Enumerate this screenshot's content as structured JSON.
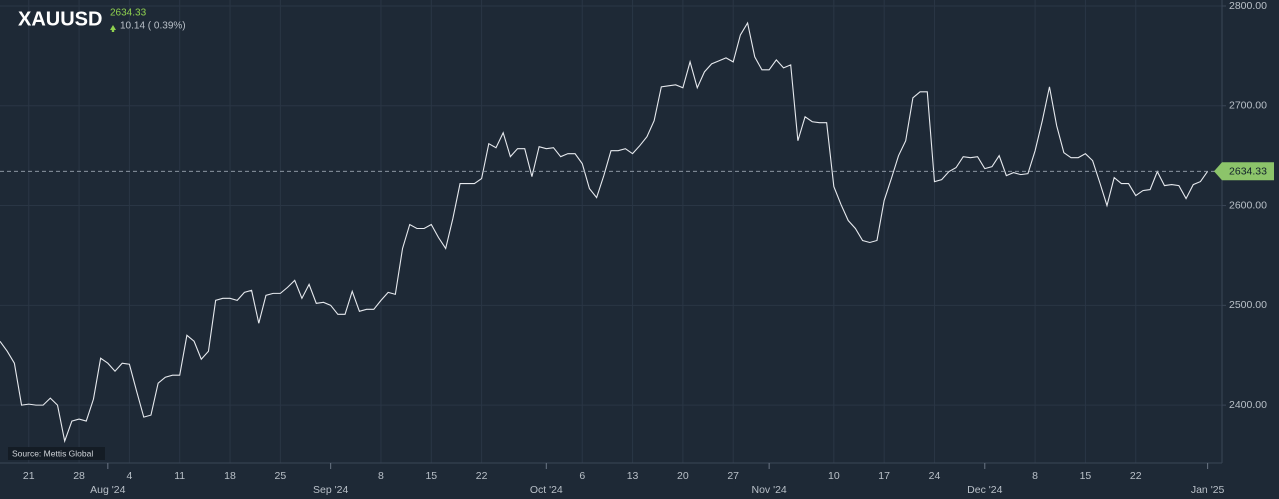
{
  "chart_data": {
    "type": "line",
    "symbol": "XAUUSD",
    "last": 2634.33,
    "change": "10.14 ( 0.39%)",
    "source": "Source: Mettis Global",
    "color": "#e6e9ee",
    "grid": true,
    "x": [
      "2024-07-17",
      "2024-07-18",
      "2024-07-19",
      "2024-07-20",
      "2024-07-21",
      "2024-07-22",
      "2024-07-23",
      "2024-07-24",
      "2024-07-25",
      "2024-07-26",
      "2024-07-27",
      "2024-07-28",
      "2024-07-29",
      "2024-07-30",
      "2024-07-31",
      "2024-08-01",
      "2024-08-02",
      "2024-08-03",
      "2024-08-04",
      "2024-08-05",
      "2024-08-06",
      "2024-08-07",
      "2024-08-08",
      "2024-08-09",
      "2024-08-10",
      "2024-08-11",
      "2024-08-12",
      "2024-08-13",
      "2024-08-14",
      "2024-08-15",
      "2024-08-16",
      "2024-08-17",
      "2024-08-18",
      "2024-08-19",
      "2024-08-20",
      "2024-08-21",
      "2024-08-22",
      "2024-08-23",
      "2024-08-24",
      "2024-08-25",
      "2024-08-26",
      "2024-08-27",
      "2024-08-28",
      "2024-08-29",
      "2024-08-30",
      "2024-08-31",
      "2024-09-01",
      "2024-09-02",
      "2024-09-03",
      "2024-09-04",
      "2024-09-05",
      "2024-09-06",
      "2024-09-07",
      "2024-09-08",
      "2024-09-09",
      "2024-09-10",
      "2024-09-11",
      "2024-09-12",
      "2024-09-13",
      "2024-09-14",
      "2024-09-15",
      "2024-09-16",
      "2024-09-17",
      "2024-09-18",
      "2024-09-19",
      "2024-09-20",
      "2024-09-21",
      "2024-09-22",
      "2024-09-23",
      "2024-09-24",
      "2024-09-25",
      "2024-09-26",
      "2024-09-27",
      "2024-09-28",
      "2024-09-29",
      "2024-09-30",
      "2024-10-01",
      "2024-10-02",
      "2024-10-03",
      "2024-10-04",
      "2024-10-05",
      "2024-10-06",
      "2024-10-07",
      "2024-10-08",
      "2024-10-09",
      "2024-10-10",
      "2024-10-11",
      "2024-10-12",
      "2024-10-13",
      "2024-10-14",
      "2024-10-15",
      "2024-10-16",
      "2024-10-17",
      "2024-10-18",
      "2024-10-19",
      "2024-10-20",
      "2024-10-21",
      "2024-10-22",
      "2024-10-23",
      "2024-10-24",
      "2024-10-25",
      "2024-10-26",
      "2024-10-27",
      "2024-10-28",
      "2024-10-29",
      "2024-10-30",
      "2024-10-31",
      "2024-11-01",
      "2024-11-02",
      "2024-11-03",
      "2024-11-04",
      "2024-11-05",
      "2024-11-06",
      "2024-11-07",
      "2024-11-08",
      "2024-11-09",
      "2024-11-10",
      "2024-11-11",
      "2024-11-12",
      "2024-11-13",
      "2024-11-14",
      "2024-11-15",
      "2024-11-16",
      "2024-11-17",
      "2024-11-18",
      "2024-11-19",
      "2024-11-20",
      "2024-11-21",
      "2024-11-22",
      "2024-11-23",
      "2024-11-24",
      "2024-11-25",
      "2024-11-26",
      "2024-11-27",
      "2024-11-28",
      "2024-11-29",
      "2024-11-30",
      "2024-12-01",
      "2024-12-02",
      "2024-12-03",
      "2024-12-04",
      "2024-12-05",
      "2024-12-06",
      "2024-12-07",
      "2024-12-08",
      "2024-12-09",
      "2024-12-10",
      "2024-12-11",
      "2024-12-12",
      "2024-12-13",
      "2024-12-14",
      "2024-12-15",
      "2024-12-16",
      "2024-12-17",
      "2024-12-18",
      "2024-12-19",
      "2024-12-20",
      "2024-12-21",
      "2024-12-22",
      "2024-12-23",
      "2024-12-24",
      "2024-12-25",
      "2024-12-26",
      "2024-12-27",
      "2024-12-28",
      "2024-12-29",
      "2024-12-30",
      "2024-12-31",
      "2025-01-01"
    ],
    "values": [
      2464,
      2454,
      2442,
      2400,
      2401,
      2400,
      2400,
      2407,
      2400,
      2364,
      2384,
      2386,
      2384,
      2406,
      2447,
      2442,
      2434,
      2442,
      2441,
      2414,
      2388,
      2390,
      2422,
      2428,
      2430,
      2430,
      2470,
      2464,
      2446,
      2454,
      2505,
      2507,
      2507,
      2505,
      2513,
      2515,
      2482,
      2510,
      2512,
      2512,
      2518,
      2525,
      2507,
      2521,
      2502,
      2503,
      2500,
      2491,
      2491,
      2514,
      2494,
      2496,
      2496,
      2505,
      2513,
      2511,
      2557,
      2581,
      2577,
      2577,
      2581,
      2568,
      2557,
      2587,
      2622,
      2622,
      2622,
      2627,
      2662,
      2658,
      2673,
      2649,
      2657,
      2657,
      2629,
      2659,
      2657,
      2658,
      2649,
      2652,
      2652,
      2642,
      2617,
      2608,
      2630,
      2655,
      2655,
      2657,
      2652,
      2660,
      2669,
      2685,
      2719,
      2720,
      2721,
      2718,
      2744,
      2718,
      2734,
      2742,
      2745,
      2748,
      2744,
      2771,
      2783,
      2749,
      2736,
      2736,
      2746,
      2738,
      2741,
      2665,
      2689,
      2684,
      2683,
      2683,
      2619,
      2601,
      2585,
      2577,
      2565,
      2563,
      2565,
      2605,
      2627,
      2650,
      2665,
      2708,
      2714,
      2714,
      2624,
      2626,
      2634,
      2638,
      2649,
      2648,
      2649,
      2637,
      2639,
      2650,
      2630,
      2633,
      2631,
      2632,
      2655,
      2685,
      2719,
      2680,
      2653,
      2648,
      2648,
      2652,
      2645,
      2623,
      2600,
      2628,
      2622,
      2622,
      2610,
      2615,
      2616,
      2634,
      2620,
      2621,
      2620,
      2607,
      2621,
      2624,
      2634.33
    ],
    "xlim": [
      "2024-07-17",
      "2025-01-03"
    ],
    "xticks": [
      {
        "value": "2024-07-21",
        "label": "21"
      },
      {
        "value": "2024-07-28",
        "label": "28"
      },
      {
        "value": "2024-08-04",
        "label": "4"
      },
      {
        "value": "2024-08-11",
        "label": "11"
      },
      {
        "value": "2024-08-18",
        "label": "18"
      },
      {
        "value": "2024-08-25",
        "label": "25"
      },
      {
        "value": "2024-09-08",
        "label": "8"
      },
      {
        "value": "2024-09-15",
        "label": "15"
      },
      {
        "value": "2024-09-22",
        "label": "22"
      },
      {
        "value": "2024-10-06",
        "label": "6"
      },
      {
        "value": "2024-10-13",
        "label": "13"
      },
      {
        "value": "2024-10-20",
        "label": "20"
      },
      {
        "value": "2024-10-27",
        "label": "27"
      },
      {
        "value": "2024-11-10",
        "label": "10"
      },
      {
        "value": "2024-11-17",
        "label": "17"
      },
      {
        "value": "2024-11-24",
        "label": "24"
      },
      {
        "value": "2024-12-08",
        "label": "8"
      },
      {
        "value": "2024-12-15",
        "label": "15"
      },
      {
        "value": "2024-12-22",
        "label": "22"
      }
    ],
    "month_ticks": [
      {
        "value": "2024-08-01",
        "label": "Aug '24"
      },
      {
        "value": "2024-09-01",
        "label": "Sep '24"
      },
      {
        "value": "2024-10-01",
        "label": "Oct '24"
      },
      {
        "value": "2024-11-01",
        "label": "Nov '24"
      },
      {
        "value": "2024-12-01",
        "label": "Dec '24"
      },
      {
        "value": "2025-01-01",
        "label": "Jan '25"
      }
    ],
    "ylim": [
      2342,
      2806
    ],
    "yticks": [
      {
        "value": 2400,
        "label": "2400.00"
      },
      {
        "value": 2500,
        "label": "2500.00"
      },
      {
        "value": 2600,
        "label": "2600.00"
      },
      {
        "value": 2700,
        "label": "2700.00"
      },
      {
        "value": 2800,
        "label": "2800.00"
      }
    ]
  }
}
